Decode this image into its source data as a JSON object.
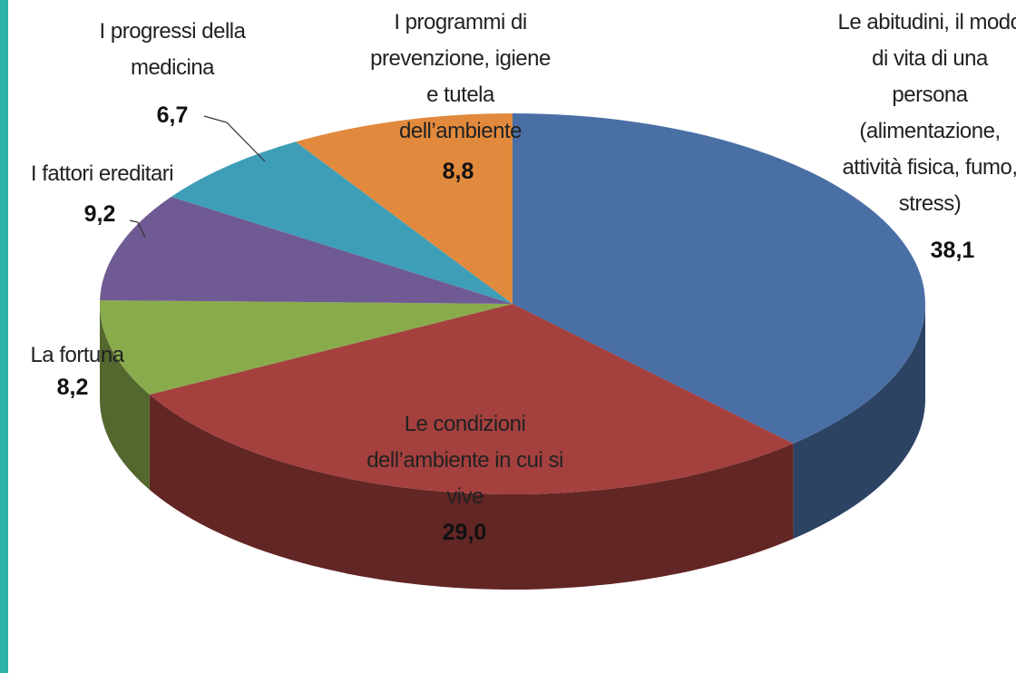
{
  "chart_data": {
    "type": "pie",
    "categories": [
      "Le abitudini, il modo di vita di una persona (alimentazione, attività fisica, fumo, stress)",
      "Le condizioni dell’ambiente in cui si vive",
      "La fortuna",
      "I fattori ereditari",
      "I progressi della medicina",
      "I programmi di prevenzione, igiene e tutela dell’ambiente"
    ],
    "values": [
      38.1,
      29.0,
      8.2,
      9.2,
      6.7,
      8.8
    ],
    "value_labels": [
      "38,1",
      "29,0",
      "8,2",
      "9,2",
      "6,7",
      "8,8"
    ],
    "colors": [
      "#4a6fa5",
      "#a4403e",
      "#8aab4c",
      "#6f5a94",
      "#3f9eb7",
      "#e18a3d"
    ]
  }
}
